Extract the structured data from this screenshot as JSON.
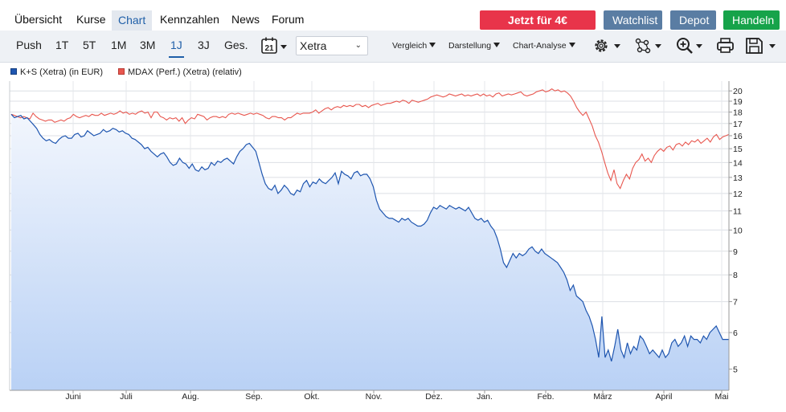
{
  "nav": {
    "tabs": [
      "Übersicht",
      "Kurse",
      "Chart",
      "Kennzahlen",
      "News",
      "Forum"
    ],
    "active": "Chart",
    "buttons": {
      "trade": "Jetzt für 4€ handeln",
      "watchlist": "Watchlist",
      "depot": "Depot",
      "handeln": "Handeln"
    },
    "colors": {
      "trade": "#e8344a",
      "watchlist": "#5a7da3",
      "depot": "#5a7da3",
      "handeln": "#16a34a"
    }
  },
  "toolbar": {
    "ranges": [
      "Push",
      "1T",
      "5T",
      "1M",
      "3M",
      "1J",
      "3J",
      "Ges."
    ],
    "active_range": "1J",
    "calendar_day": "21",
    "exchange": "Xetra",
    "vergleich": "Vergleich",
    "darstellung": "Darstellung",
    "analyse": "Chart-Analyse",
    "icons": [
      "gear-icon",
      "indicator-icon",
      "zoom-icon",
      "print-icon",
      "save-icon"
    ]
  },
  "chart_data": {
    "type": "area",
    "yscale": "log",
    "ylim": [
      4.5,
      21
    ],
    "yticks": [
      5,
      6,
      7,
      8,
      9,
      10,
      11,
      12,
      13,
      14,
      15,
      16,
      17,
      18,
      19,
      20
    ],
    "xlabels": [
      "Juni",
      "Juli",
      "Aug.",
      "Sep.",
      "Okt.",
      "Nov.",
      "Dez.",
      "Jan.",
      "Feb.",
      "März",
      "April",
      "Mai"
    ],
    "legend_placement": "top-left",
    "grid": true,
    "series": [
      {
        "name": "K+S (Xetra) (in EUR)",
        "color": "#1f56b0",
        "values": [
          17.8,
          17.5,
          17.6,
          17.7,
          17.4,
          17.5,
          17.2,
          16.9,
          16.6,
          16.1,
          15.8,
          15.6,
          15.7,
          15.5,
          15.4,
          15.7,
          15.9,
          16.0,
          15.8,
          15.8,
          16.1,
          16.2,
          15.9,
          16.0,
          16.4,
          16.2,
          16.0,
          16.1,
          16.2,
          16.5,
          16.3,
          16.4,
          16.6,
          16.5,
          16.3,
          16.4,
          16.2,
          16.1,
          15.8,
          15.7,
          15.5,
          15.3,
          15.0,
          15.1,
          14.8,
          14.6,
          14.4,
          14.6,
          14.7,
          14.4,
          14.0,
          13.8,
          13.9,
          14.3,
          14.0,
          13.9,
          13.6,
          13.9,
          13.5,
          13.4,
          13.7,
          13.5,
          13.6,
          14.0,
          13.8,
          14.1,
          14.0,
          14.2,
          14.3,
          14.1,
          13.9,
          14.4,
          14.8,
          15.0,
          15.3,
          15.4,
          15.1,
          14.8,
          14.0,
          13.2,
          12.6,
          12.3,
          12.2,
          12.5,
          12.0,
          12.2,
          12.5,
          12.3,
          12.0,
          11.9,
          12.2,
          12.1,
          12.6,
          12.8,
          12.4,
          12.7,
          12.6,
          12.9,
          12.7,
          12.6,
          12.8,
          13.0,
          13.3,
          12.6,
          13.4,
          13.2,
          13.1,
          12.9,
          13.3,
          13.4,
          13.1,
          13.2,
          13.2,
          12.9,
          12.4,
          11.6,
          11.1,
          10.9,
          10.7,
          10.6,
          10.6,
          10.5,
          10.4,
          10.6,
          10.5,
          10.6,
          10.4,
          10.3,
          10.2,
          10.2,
          10.3,
          10.5,
          10.9,
          11.2,
          11.1,
          11.3,
          11.2,
          11.1,
          11.3,
          11.2,
          11.1,
          11.2,
          11.1,
          11.0,
          11.2,
          10.9,
          10.6,
          10.5,
          10.6,
          10.4,
          10.5,
          10.2,
          10.0,
          9.6,
          9.1,
          8.5,
          8.3,
          8.6,
          8.9,
          8.7,
          8.9,
          8.8,
          8.9,
          9.1,
          9.2,
          9.0,
          8.9,
          9.1,
          8.9,
          8.8,
          8.7,
          8.6,
          8.5,
          8.3,
          8.1,
          7.8,
          7.4,
          7.6,
          7.2,
          7.1,
          7.0,
          6.7,
          6.5,
          6.2,
          5.8,
          5.3,
          6.5,
          5.3,
          5.5,
          5.2,
          5.6,
          6.1,
          5.5,
          5.3,
          5.7,
          5.4,
          5.6,
          5.5,
          5.9,
          5.8,
          5.6,
          5.4,
          5.5,
          5.4,
          5.3,
          5.5,
          5.3,
          5.4,
          5.7,
          5.8,
          5.6,
          5.7,
          5.9,
          5.6,
          5.9,
          5.8,
          5.8,
          5.7,
          5.9,
          5.8,
          6.0,
          6.1,
          6.2,
          6.0,
          5.8,
          5.8,
          5.8
        ]
      },
      {
        "name": "MDAX (Perf.) (Xetra) (relativ)",
        "color": "#e8574f",
        "values": [
          17.8,
          17.7,
          17.6,
          17.5,
          17.6,
          17.5,
          17.4,
          17.9,
          17.6,
          17.4,
          17.3,
          17.2,
          17.3,
          17.3,
          17.1,
          17.2,
          17.3,
          17.2,
          17.4,
          17.5,
          17.8,
          17.6,
          17.5,
          17.6,
          17.7,
          17.6,
          17.8,
          17.7,
          17.7,
          17.9,
          17.7,
          17.8,
          17.9,
          17.8,
          17.9,
          18.1,
          17.9,
          18.0,
          17.8,
          17.9,
          17.8,
          18.0,
          18.1,
          17.9,
          18.0,
          17.5,
          18.0,
          18.0,
          17.6,
          17.5,
          17.3,
          17.5,
          17.4,
          17.5,
          17.2,
          17.5,
          17.0,
          17.3,
          17.5,
          17.4,
          17.8,
          17.7,
          17.6,
          17.3,
          17.5,
          17.6,
          17.6,
          17.5,
          17.6,
          17.5,
          17.8,
          17.9,
          17.8,
          17.9,
          17.8,
          17.7,
          17.8,
          17.9,
          17.8,
          17.9,
          17.8,
          17.7,
          17.5,
          17.4,
          17.6,
          17.6,
          17.5,
          17.5,
          17.3,
          17.5,
          17.5,
          17.7,
          17.9,
          17.8,
          17.9,
          17.9,
          17.9,
          18.0,
          18.2,
          17.9,
          18.1,
          18.3,
          18.4,
          18.2,
          18.4,
          18.5,
          18.4,
          18.6,
          18.5,
          18.6,
          18.5,
          18.7,
          18.7,
          18.5,
          18.6,
          18.4,
          18.6,
          18.7,
          18.8,
          18.6,
          18.7,
          18.8,
          18.8,
          18.9,
          19.0,
          18.9,
          19.1,
          19.0,
          18.8,
          19.1,
          19.0,
          18.9,
          19.0,
          19.1,
          19.2,
          19.4,
          19.5,
          19.6,
          19.5,
          19.4,
          19.5,
          19.7,
          19.6,
          19.5,
          19.6,
          19.7,
          19.5,
          19.6,
          19.5,
          19.6,
          19.7,
          19.5,
          19.7,
          19.5,
          19.6,
          19.4,
          19.7,
          19.8,
          19.5,
          19.6,
          19.7,
          19.6,
          19.7,
          19.8,
          19.9,
          19.6,
          19.5,
          19.6,
          19.7,
          19.9,
          20.0,
          20.1,
          19.9,
          20.0,
          20.2,
          20.0,
          20.1,
          19.9,
          20.0,
          19.8,
          19.5,
          19.0,
          18.4,
          18.0,
          17.7,
          18.0,
          17.4,
          16.8,
          16.0,
          15.5,
          14.8,
          14.0,
          13.3,
          12.8,
          13.5,
          12.6,
          12.3,
          12.8,
          13.2,
          12.9,
          13.6,
          14.0,
          14.2,
          14.6,
          14.1,
          14.3,
          14.0,
          14.5,
          14.8,
          15.0,
          14.8,
          15.1,
          15.2,
          14.9,
          15.3,
          15.4,
          15.2,
          15.5,
          15.3,
          15.6,
          15.5,
          15.7,
          15.4,
          15.6,
          15.8,
          15.5,
          15.9,
          16.1,
          15.7,
          15.9,
          16.0,
          16.1
        ]
      }
    ]
  }
}
